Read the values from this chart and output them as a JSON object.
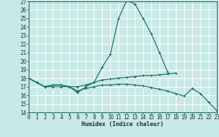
{
  "title": "",
  "xlabel": "Humidex (Indice chaleur)",
  "ylabel": "",
  "background_color": "#c8eae6",
  "line_color": "#1a6b6b",
  "grid_color": "#ffffff",
  "xlim": [
    0,
    23
  ],
  "ylim": [
    14,
    27
  ],
  "yticks": [
    14,
    15,
    16,
    17,
    18,
    19,
    20,
    21,
    22,
    23,
    24,
    25,
    26,
    27
  ],
  "xticks": [
    0,
    1,
    2,
    3,
    4,
    5,
    6,
    7,
    8,
    9,
    10,
    11,
    12,
    13,
    14,
    15,
    16,
    17,
    18,
    19,
    20,
    21,
    22,
    23
  ],
  "line1_x": [
    0,
    1,
    2,
    3,
    4,
    5,
    6,
    7,
    8,
    9,
    10,
    11,
    12,
    13,
    14,
    15,
    16,
    17
  ],
  "line1_y": [
    18,
    17.5,
    17.0,
    17.2,
    17.2,
    17.0,
    16.3,
    17.0,
    17.5,
    19.3,
    20.8,
    25.0,
    27.1,
    26.7,
    25.0,
    23.2,
    21.0,
    18.7
  ],
  "line2_x": [
    0,
    1,
    2,
    3,
    4,
    5,
    6,
    7,
    8,
    9,
    10,
    11,
    12,
    13,
    14,
    15,
    16,
    17,
    18
  ],
  "line2_y": [
    18,
    17.5,
    17.0,
    17.2,
    17.2,
    17.0,
    17.0,
    17.2,
    17.5,
    17.8,
    17.9,
    18.0,
    18.1,
    18.2,
    18.3,
    18.3,
    18.4,
    18.5,
    18.6
  ],
  "line3_x": [
    0,
    1,
    2,
    3,
    4,
    5,
    6,
    7,
    8,
    9,
    10,
    11,
    12,
    13,
    14,
    15,
    16,
    17,
    18,
    19,
    20,
    21,
    22,
    23
  ],
  "line3_y": [
    18,
    17.5,
    17.0,
    17.0,
    17.0,
    17.0,
    16.5,
    16.8,
    17.0,
    17.2,
    17.2,
    17.3,
    17.3,
    17.2,
    17.1,
    16.9,
    16.7,
    16.5,
    16.2,
    15.9,
    16.8,
    16.2,
    15.2,
    14.2
  ],
  "figwidth": 3.2,
  "figheight": 2.0,
  "dpi": 100
}
